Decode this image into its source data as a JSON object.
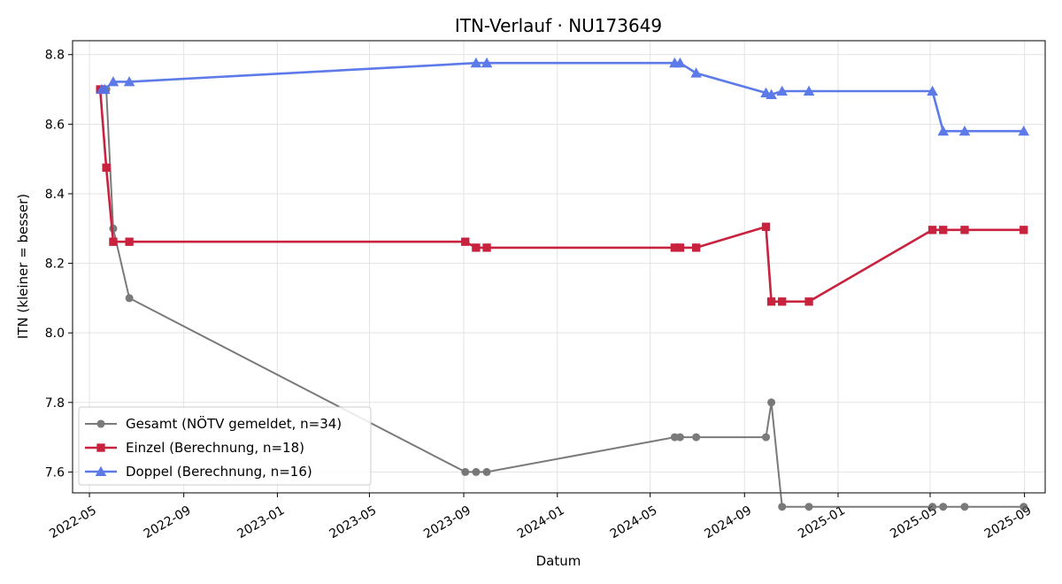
{
  "chart_data": {
    "type": "line",
    "title": "ITN-Verlauf · NU173649",
    "xlabel": "Datum",
    "ylabel": "ITN  (kleiner = besser)",
    "ylim": [
      7.54,
      8.84
    ],
    "xlim": [
      "2022-04-09",
      "2025-09-28"
    ],
    "grid": true,
    "legend_position": "lower-left",
    "x_ticks": [
      "2022-05",
      "2022-09",
      "2023-01",
      "2023-05",
      "2023-09",
      "2024-01",
      "2024-05",
      "2024-09",
      "2025-01",
      "2025-05",
      "2025-09"
    ],
    "y_ticks": [
      7.6,
      7.8,
      8.0,
      8.2,
      8.4,
      8.6,
      8.8
    ],
    "series": [
      {
        "name": "Gesamt (NÖTV gemeldet, n=34)",
        "color": "#555555",
        "marker": "circle",
        "x": [
          "2022-05-17",
          "2022-05-23",
          "2022-06-01",
          "2022-06-22",
          "2023-09-03",
          "2023-09-17",
          "2023-10-01",
          "2024-06-02",
          "2024-06-09",
          "2024-06-30",
          "2024-09-29",
          "2024-10-06",
          "2024-10-20",
          "2024-11-24",
          "2025-05-04",
          "2025-05-18",
          "2025-06-15",
          "2025-08-31"
        ],
        "values": [
          8.7,
          8.7,
          8.3,
          8.1,
          7.6,
          7.6,
          7.6,
          7.7,
          7.7,
          7.7,
          7.7,
          7.8,
          7.5,
          7.5,
          7.5,
          7.5,
          7.5,
          7.5
        ]
      },
      {
        "name": "Einzel (Berechnung, n=18)",
        "color": "#c8223f",
        "marker": "square",
        "x": [
          "2022-05-15",
          "2022-05-23",
          "2022-06-01",
          "2022-06-22",
          "2023-09-03",
          "2023-09-17",
          "2023-10-01",
          "2024-06-02",
          "2024-06-09",
          "2024-06-30",
          "2024-09-29",
          "2024-10-06",
          "2024-10-20",
          "2024-11-24",
          "2025-05-04",
          "2025-05-18",
          "2025-06-15",
          "2025-08-31"
        ],
        "values": [
          8.7,
          8.475,
          8.262,
          8.262,
          8.262,
          8.245,
          8.245,
          8.245,
          8.245,
          8.245,
          8.305,
          8.09,
          8.09,
          8.09,
          8.296,
          8.296,
          8.296,
          8.296
        ]
      },
      {
        "name": "Doppel (Berechnung, n=16)",
        "color": "#5573e8",
        "marker": "triangle",
        "x": [
          "2022-05-17",
          "2022-05-21",
          "2022-06-01",
          "2022-06-22",
          "2023-09-17",
          "2023-10-01",
          "2024-06-02",
          "2024-06-09",
          "2024-06-30",
          "2024-09-29",
          "2024-10-06",
          "2024-10-20",
          "2024-11-24",
          "2025-05-04",
          "2025-05-18",
          "2025-06-15",
          "2025-08-31"
        ],
        "values": [
          8.7,
          8.7,
          8.722,
          8.722,
          8.776,
          8.776,
          8.776,
          8.776,
          8.747,
          8.69,
          8.685,
          8.695,
          8.695,
          8.695,
          8.58,
          8.58,
          8.58
        ]
      }
    ]
  }
}
